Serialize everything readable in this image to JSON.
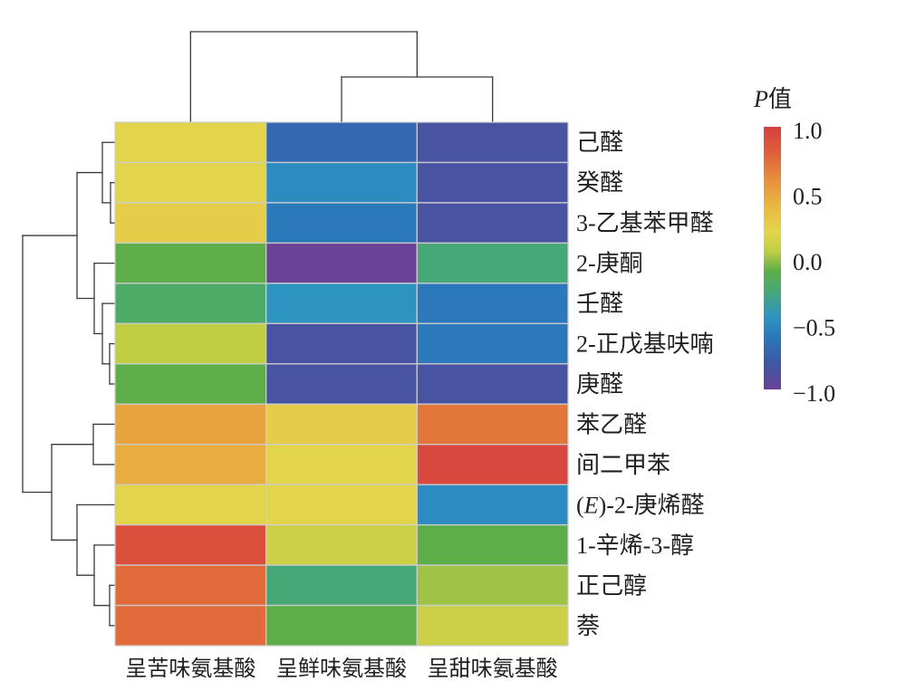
{
  "chart_data": {
    "type": "heatmap",
    "columns": [
      "呈苦味氨基酸",
      "呈鲜味氨基酸",
      "呈甜味氨基酸"
    ],
    "rows": [
      "己醛",
      "癸醛",
      "3-乙基苯甲醛",
      "2-庚酮",
      "壬醛",
      "2-正戊基呋喃",
      "庚醛",
      "苯乙醛",
      "间二甲苯",
      "(E)-2-庚烯醛",
      "1-辛烯-3-醇",
      "正己醇",
      "萘"
    ],
    "values": [
      [
        0.2,
        -0.7,
        -0.85
      ],
      [
        0.2,
        -0.5,
        -0.85
      ],
      [
        0.25,
        -0.6,
        -0.85
      ],
      [
        -0.1,
        -1.0,
        -0.25
      ],
      [
        -0.2,
        -0.45,
        -0.6
      ],
      [
        0.05,
        -0.85,
        -0.6
      ],
      [
        -0.1,
        -0.85,
        -0.85
      ],
      [
        0.5,
        0.25,
        0.7
      ],
      [
        0.45,
        0.2,
        0.95
      ],
      [
        0.2,
        0.2,
        -0.5
      ],
      [
        0.9,
        0.1,
        -0.1
      ],
      [
        0.75,
        -0.25,
        0.0
      ],
      [
        0.75,
        -0.1,
        0.1
      ]
    ],
    "colorbar": {
      "title": "P值",
      "range": [
        -1.0,
        1.0
      ],
      "ticks": [
        1.0,
        0.5,
        0.0,
        -0.5,
        -1.0
      ],
      "tick_labels": [
        "1.0",
        "0.5",
        "0.0",
        "−0.5",
        "−1.0"
      ],
      "placement": "right"
    },
    "colormap": [
      {
        "v": 1.0,
        "color": "#d5403f"
      },
      {
        "v": 0.8,
        "color": "#df5f3a"
      },
      {
        "v": 0.6,
        "color": "#e78f3c"
      },
      {
        "v": 0.4,
        "color": "#e9b641"
      },
      {
        "v": 0.2,
        "color": "#e3d54b"
      },
      {
        "v": 0.05,
        "color": "#c0ce43"
      },
      {
        "v": -0.1,
        "color": "#5dae48"
      },
      {
        "v": -0.25,
        "color": "#47a877"
      },
      {
        "v": -0.45,
        "color": "#2d94c2"
      },
      {
        "v": -0.6,
        "color": "#2b78bb"
      },
      {
        "v": -0.8,
        "color": "#3d58a5"
      },
      {
        "v": -1.0,
        "color": "#6a4296"
      }
    ],
    "dendrograms": {
      "rows": true,
      "columns": true
    },
    "grid": false
  }
}
